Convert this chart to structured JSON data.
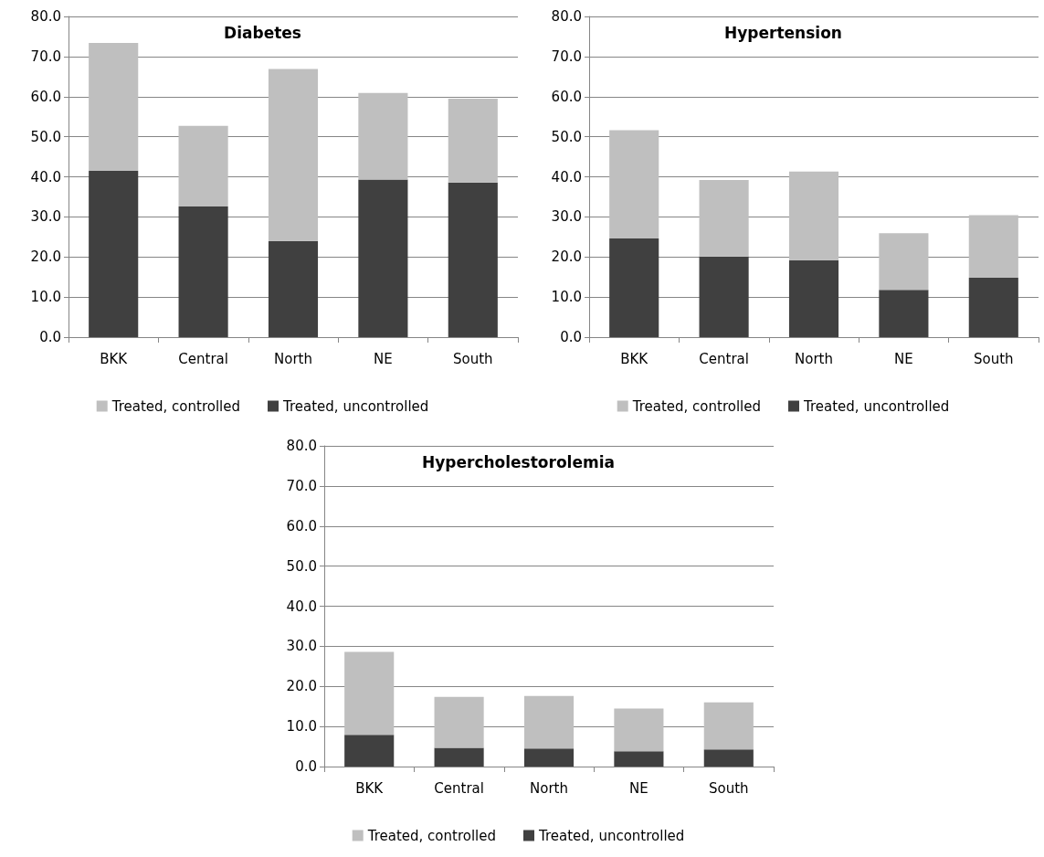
{
  "chart_data": [
    {
      "type": "bar",
      "title": "Diabetes",
      "categories": [
        "BKK",
        "Central",
        "North",
        "NE",
        "South"
      ],
      "stacked": true,
      "grid": "y",
      "legend": "bottom",
      "ylim": [
        0,
        80
      ],
      "yticks": [
        {
          "value": 0,
          "label": "0.0"
        },
        {
          "value": 10,
          "label": "10.0"
        },
        {
          "value": 20,
          "label": "20.0"
        },
        {
          "value": 30,
          "label": "30.0"
        },
        {
          "value": 40,
          "label": "40.0"
        },
        {
          "value": 50,
          "label": "50.0"
        },
        {
          "value": 60,
          "label": "60.0"
        },
        {
          "value": 70,
          "label": "70.0"
        },
        {
          "value": 80,
          "label": "80.0"
        }
      ],
      "series": [
        {
          "name": "Treated, uncontrolled",
          "color": "#404040",
          "values": [
            41.5,
            32.6,
            24.0,
            39.3,
            38.6
          ]
        },
        {
          "name": "Treated, controlled",
          "color": "#bfbfbf",
          "values": [
            31.9,
            20.1,
            42.9,
            21.6,
            20.9
          ]
        }
      ]
    },
    {
      "type": "bar",
      "title": "Hypertension",
      "categories": [
        "BKK",
        "Central",
        "North",
        "NE",
        "South"
      ],
      "stacked": true,
      "grid": "y",
      "legend": "bottom",
      "ylim": [
        0,
        80
      ],
      "yticks": [
        {
          "value": 0,
          "label": "0.0"
        },
        {
          "value": 10,
          "label": "10.0"
        },
        {
          "value": 20,
          "label": "20.0"
        },
        {
          "value": 30,
          "label": "30.0"
        },
        {
          "value": 40,
          "label": "40.0"
        },
        {
          "value": 50,
          "label": "50.0"
        },
        {
          "value": 60,
          "label": "60.0"
        },
        {
          "value": 70,
          "label": "70.0"
        },
        {
          "value": 80,
          "label": "80.0"
        }
      ],
      "series": [
        {
          "name": "Treated, uncontrolled",
          "color": "#404040",
          "values": [
            24.6,
            20.1,
            19.2,
            11.8,
            14.8
          ]
        },
        {
          "name": "Treated, controlled",
          "color": "#bfbfbf",
          "values": [
            27.0,
            19.1,
            22.1,
            14.1,
            15.6
          ]
        }
      ]
    },
    {
      "type": "bar",
      "title": "Hypercholestorolemia",
      "categories": [
        "BKK",
        "Central",
        "North",
        "NE",
        "South"
      ],
      "stacked": true,
      "grid": "y",
      "legend": "bottom",
      "ylim": [
        0,
        80
      ],
      "yticks": [
        {
          "value": 0,
          "label": "0.0"
        },
        {
          "value": 10,
          "label": "10.0"
        },
        {
          "value": 20,
          "label": "20.0"
        },
        {
          "value": 30,
          "label": "30.0"
        },
        {
          "value": 40,
          "label": "40.0"
        },
        {
          "value": 50,
          "label": "50.0"
        },
        {
          "value": 60,
          "label": "60.0"
        },
        {
          "value": 70,
          "label": "70.0"
        },
        {
          "value": 80,
          "label": "80.0"
        }
      ],
      "series": [
        {
          "name": "Treated, uncontrolled",
          "color": "#404040",
          "values": [
            7.9,
            4.7,
            4.5,
            3.8,
            4.3
          ]
        },
        {
          "name": "Treated, controlled",
          "color": "#bfbfbf",
          "values": [
            20.7,
            12.7,
            13.1,
            10.7,
            11.7
          ]
        }
      ]
    }
  ]
}
